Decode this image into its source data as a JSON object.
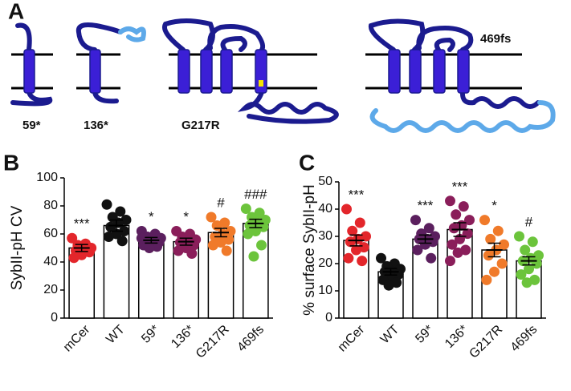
{
  "diagram": {
    "panel_label": "A",
    "labels": [
      "59*",
      "136*",
      "G217R",
      "469fs"
    ]
  },
  "chart_data": [
    {
      "type": "bar",
      "panel_label": "B",
      "ylabel": "SybII-pH CV",
      "categories": [
        "mCer",
        "WT",
        "59*",
        "136*",
        "G217R",
        "469fs"
      ],
      "colors": [
        "#e3262b",
        "#111111",
        "#5b1f5e",
        "#8a1e5a",
        "#f07a2a",
        "#6cc43c"
      ],
      "values": [
        50,
        66,
        55.5,
        54.5,
        61,
        67.5
      ],
      "errors": [
        2.5,
        4,
        2,
        2.5,
        3,
        3
      ],
      "significance": [
        "***",
        null,
        "*",
        "*",
        "#",
        "###"
      ],
      "points": [
        [
          57,
          53,
          52,
          50,
          49,
          48,
          47,
          45,
          43
        ],
        [
          81,
          76,
          72,
          70,
          68,
          65,
          62,
          60,
          58,
          55
        ],
        [
          62,
          60,
          58,
          57,
          56,
          55,
          54,
          53,
          52,
          51,
          50,
          57
        ],
        [
          62,
          60,
          58,
          56,
          55,
          54,
          52,
          50,
          48,
          46
        ],
        [
          72,
          68,
          66,
          62,
          60,
          58,
          56,
          54,
          52,
          48
        ],
        [
          78,
          75,
          72,
          70,
          68,
          66,
          65,
          62,
          60,
          52,
          44
        ]
      ],
      "ylim": [
        0,
        100
      ],
      "yticks": [
        0,
        20,
        40,
        60,
        80,
        100
      ]
    },
    {
      "type": "bar",
      "panel_label": "C",
      "ylabel": "% surface SybII-pH",
      "categories": [
        "mCer",
        "WT",
        "59*",
        "136*",
        "G217R",
        "469fs"
      ],
      "colors": [
        "#e3262b",
        "#111111",
        "#5b1f5e",
        "#8a1e5a",
        "#f07a2a",
        "#6cc43c"
      ],
      "values": [
        28.5,
        17,
        29,
        32.5,
        25,
        21
      ],
      "errors": [
        2,
        1.2,
        1.5,
        2.5,
        2.5,
        1.5
      ],
      "significance": [
        "***",
        null,
        "***",
        "***",
        "*",
        "#"
      ],
      "points": [
        [
          40,
          35,
          32,
          30,
          29,
          28,
          26,
          25,
          22,
          21
        ],
        [
          22,
          20,
          19,
          18,
          17,
          17,
          16,
          15,
          14,
          13,
          12
        ],
        [
          36,
          33,
          31,
          30,
          29,
          29,
          28,
          27,
          25,
          22
        ],
        [
          43,
          41,
          38,
          36,
          34,
          33,
          31,
          29,
          27,
          25,
          24,
          21
        ],
        [
          36,
          32,
          29,
          27,
          25,
          23,
          20,
          17,
          14
        ],
        [
          30,
          28,
          25,
          23,
          22,
          21,
          20,
          18,
          16,
          14,
          13
        ]
      ],
      "ylim": [
        0,
        50
      ],
      "yticks": [
        0,
        10,
        20,
        30,
        40,
        50
      ]
    }
  ]
}
